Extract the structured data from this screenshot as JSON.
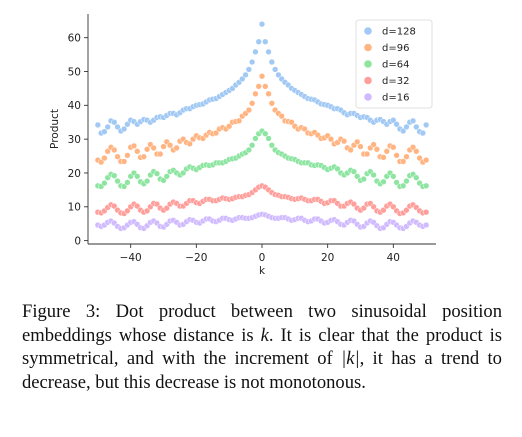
{
  "chart_data": {
    "type": "scatter",
    "xlabel": "k",
    "ylabel": "Product",
    "xlim": [
      -53,
      53
    ],
    "ylim": [
      -1,
      67
    ],
    "xticks": [
      -40,
      -20,
      0,
      20,
      40
    ],
    "xtick_labels": [
      "−40",
      "−20",
      "0",
      "20",
      "40"
    ],
    "yticks": [
      0,
      10,
      20,
      30,
      40,
      50,
      60
    ],
    "ytick_labels": [
      "0",
      "10",
      "20",
      "30",
      "40",
      "50",
      "60"
    ],
    "grid": false,
    "legend_position": "top-right",
    "x": [
      -50,
      -49,
      -48,
      -47,
      -46,
      -45,
      -44,
      -43,
      -42,
      -41,
      -40,
      -39,
      -38,
      -37,
      -36,
      -35,
      -34,
      -33,
      -32,
      -31,
      -30,
      -29,
      -28,
      -27,
      -26,
      -25,
      -24,
      -23,
      -22,
      -21,
      -20,
      -19,
      -18,
      -17,
      -16,
      -15,
      -14,
      -13,
      -12,
      -11,
      -10,
      -9,
      -8,
      -7,
      -6,
      -5,
      -4,
      -3,
      -2,
      -1,
      0,
      1,
      2,
      3,
      4,
      5,
      6,
      7,
      8,
      9,
      10,
      11,
      12,
      13,
      14,
      15,
      16,
      17,
      18,
      19,
      20,
      21,
      22,
      23,
      24,
      25,
      26,
      27,
      28,
      29,
      30,
      31,
      32,
      33,
      34,
      35,
      36,
      37,
      38,
      39,
      40,
      41,
      42,
      43,
      44,
      45,
      46,
      47,
      48,
      49,
      50
    ],
    "series": [
      {
        "name": "d=128",
        "color": "#a1c9f4",
        "values": [
          34.2,
          31.8,
          32.2,
          33.6,
          35.4,
          35.0,
          33.6,
          32.4,
          33.0,
          34.4,
          35.6,
          35.2,
          34.4,
          35.2,
          35.8,
          35.6,
          35.0,
          35.6,
          36.4,
          36.6,
          36.4,
          37.0,
          37.6,
          37.6,
          37.2,
          37.8,
          38.6,
          39.0,
          39.0,
          39.6,
          40.0,
          40.2,
          40.4,
          41.0,
          41.6,
          41.8,
          42.0,
          42.6,
          43.2,
          43.8,
          44.4,
          45.0,
          46.0,
          46.8,
          47.8,
          49.0,
          50.6,
          52.8,
          55.8,
          58.8,
          64.0,
          58.8,
          55.8,
          52.8,
          50.6,
          49.0,
          47.8,
          46.8,
          46.0,
          45.0,
          44.4,
          43.8,
          43.2,
          42.6,
          42.0,
          41.8,
          41.6,
          41.0,
          40.4,
          40.2,
          40.0,
          39.6,
          39.0,
          39.0,
          38.6,
          37.8,
          37.2,
          37.6,
          37.6,
          37.0,
          36.4,
          36.6,
          36.4,
          35.6,
          35.0,
          35.6,
          35.8,
          35.2,
          34.4,
          35.2,
          35.6,
          34.4,
          33.0,
          32.4,
          33.6,
          35.0,
          35.4,
          33.6,
          32.2,
          31.8,
          34.2
        ]
      },
      {
        "name": "d=96",
        "color": "#ffb482",
        "values": [
          23.8,
          23.2,
          24.4,
          26.4,
          27.6,
          26.8,
          24.8,
          23.4,
          23.4,
          25.2,
          27.6,
          28.0,
          26.4,
          24.6,
          24.8,
          27.0,
          28.4,
          27.4,
          25.6,
          25.6,
          27.8,
          29.2,
          28.2,
          26.8,
          27.4,
          29.4,
          30.0,
          29.0,
          28.6,
          30.0,
          31.0,
          30.4,
          30.2,
          31.2,
          32.0,
          31.6,
          31.8,
          33.0,
          33.4,
          33.0,
          33.8,
          35.0,
          35.2,
          35.4,
          36.8,
          37.6,
          38.6,
          40.6,
          43.4,
          45.6,
          48.6,
          45.6,
          43.4,
          40.6,
          38.6,
          37.6,
          36.8,
          35.4,
          35.2,
          35.0,
          33.8,
          33.0,
          33.4,
          33.0,
          31.8,
          31.6,
          32.0,
          31.2,
          30.2,
          30.4,
          31.0,
          30.0,
          28.6,
          29.0,
          30.0,
          29.4,
          27.4,
          26.8,
          28.2,
          29.2,
          27.8,
          25.6,
          25.6,
          27.4,
          28.4,
          27.0,
          24.8,
          24.6,
          26.4,
          28.0,
          27.6,
          25.2,
          23.4,
          23.4,
          24.8,
          26.8,
          27.6,
          26.4,
          24.4,
          23.2,
          23.8
        ]
      },
      {
        "name": "d=64",
        "color": "#8de5a1",
        "values": [
          16.2,
          16.0,
          17.0,
          18.6,
          19.6,
          19.2,
          17.6,
          16.2,
          16.0,
          17.2,
          19.0,
          20.0,
          19.0,
          17.4,
          16.8,
          17.6,
          19.4,
          20.4,
          19.8,
          18.2,
          17.8,
          19.0,
          20.4,
          20.8,
          20.0,
          19.4,
          20.0,
          21.2,
          21.8,
          21.4,
          21.0,
          21.6,
          22.2,
          22.4,
          22.2,
          22.4,
          23.0,
          23.0,
          23.0,
          23.4,
          24.0,
          24.2,
          24.4,
          25.0,
          25.6,
          26.0,
          26.8,
          28.2,
          30.2,
          31.6,
          32.4,
          31.6,
          30.2,
          28.2,
          26.8,
          26.0,
          25.6,
          25.0,
          24.4,
          24.2,
          24.0,
          23.4,
          23.0,
          23.0,
          23.0,
          22.4,
          22.2,
          22.4,
          22.2,
          21.6,
          21.0,
          21.4,
          21.8,
          21.2,
          20.0,
          19.4,
          20.0,
          20.8,
          20.4,
          19.0,
          17.8,
          18.2,
          19.8,
          20.4,
          19.4,
          17.6,
          16.8,
          17.4,
          19.0,
          20.0,
          19.0,
          17.2,
          16.0,
          16.2,
          17.6,
          19.2,
          19.6,
          18.6,
          17.0,
          16.0,
          16.2
        ]
      },
      {
        "name": "d=32",
        "color": "#ff9f9b",
        "values": [
          8.4,
          8.2,
          8.8,
          9.8,
          10.6,
          10.2,
          9.0,
          8.2,
          8.0,
          8.8,
          10.0,
          10.8,
          10.2,
          9.0,
          8.4,
          8.8,
          10.0,
          11.0,
          10.8,
          9.6,
          9.0,
          9.6,
          10.8,
          11.4,
          11.0,
          10.2,
          10.2,
          11.0,
          11.8,
          11.8,
          11.2,
          11.0,
          11.6,
          12.2,
          12.2,
          11.8,
          11.8,
          12.2,
          12.6,
          12.4,
          12.2,
          12.4,
          12.8,
          13.0,
          13.0,
          13.4,
          13.6,
          14.2,
          15.0,
          15.8,
          16.2,
          15.8,
          15.0,
          14.2,
          13.6,
          13.4,
          13.0,
          13.0,
          12.8,
          12.4,
          12.2,
          12.4,
          12.6,
          12.2,
          11.8,
          11.8,
          12.2,
          12.2,
          11.6,
          11.0,
          11.2,
          11.8,
          11.8,
          11.0,
          10.2,
          10.2,
          11.0,
          11.4,
          10.8,
          9.6,
          9.0,
          9.6,
          10.8,
          11.0,
          10.0,
          8.8,
          8.4,
          9.0,
          10.2,
          10.8,
          10.0,
          8.8,
          8.0,
          8.2,
          9.0,
          10.2,
          10.6,
          9.8,
          8.8,
          8.2,
          8.4
        ]
      },
      {
        "name": "d=16",
        "color": "#d0bbff",
        "values": [
          4.6,
          4.2,
          4.6,
          5.4,
          5.8,
          5.2,
          4.2,
          3.6,
          3.8,
          4.6,
          5.4,
          5.6,
          4.8,
          3.8,
          3.6,
          4.4,
          5.4,
          5.8,
          5.2,
          4.2,
          4.0,
          4.8,
          5.8,
          6.0,
          5.4,
          4.6,
          4.8,
          5.6,
          6.2,
          6.0,
          5.4,
          5.2,
          5.8,
          6.4,
          6.4,
          5.8,
          5.6,
          6.0,
          6.6,
          6.6,
          6.2,
          6.0,
          6.4,
          6.8,
          6.8,
          6.6,
          6.6,
          6.8,
          7.2,
          7.6,
          7.8,
          7.6,
          7.2,
          6.8,
          6.6,
          6.6,
          6.8,
          6.8,
          6.4,
          6.0,
          6.2,
          6.6,
          6.6,
          6.0,
          5.6,
          5.8,
          6.4,
          6.4,
          5.8,
          5.2,
          5.4,
          6.0,
          6.2,
          5.6,
          4.8,
          4.6,
          5.4,
          6.0,
          5.8,
          4.8,
          4.0,
          4.2,
          5.2,
          5.8,
          5.4,
          4.4,
          3.6,
          3.8,
          4.8,
          5.6,
          5.4,
          4.6,
          3.8,
          3.6,
          4.2,
          5.2,
          5.8,
          5.4,
          4.6,
          4.2,
          4.6
        ]
      }
    ]
  },
  "caption": {
    "lead": "Figure 3: Dot product between two sinusoidal position embeddings whose distance is ",
    "k1": "k",
    "mid": ". It is clear that the product is symmetrical, and with the increment of ",
    "k2": "|k|",
    "tail": ", it has a trend to decrease, but this decrease is not monotonous."
  }
}
